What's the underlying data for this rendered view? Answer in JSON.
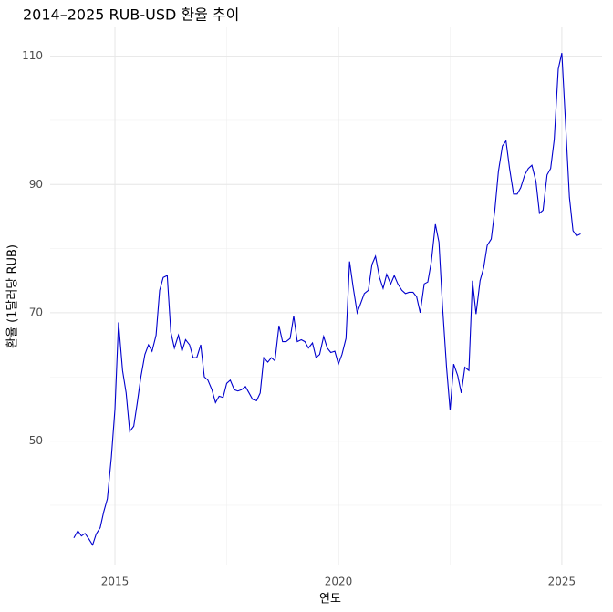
{
  "chart_data": {
    "type": "line",
    "title": "2014–2025 RUB-USD 환율 추이",
    "x_label": "연도",
    "y_label": "환율 (1달러당 RUB)",
    "x": [
      2014.08,
      2014.17,
      2014.25,
      2014.33,
      2014.42,
      2014.5,
      2014.58,
      2014.67,
      2014.75,
      2014.83,
      2014.92,
      2015,
      2015.08,
      2015.17,
      2015.25,
      2015.33,
      2015.42,
      2015.5,
      2015.58,
      2015.67,
      2015.75,
      2015.83,
      2015.92,
      2016,
      2016.08,
      2016.17,
      2016.25,
      2016.33,
      2016.42,
      2016.5,
      2016.58,
      2016.67,
      2016.75,
      2016.83,
      2016.92,
      2017,
      2017.08,
      2017.17,
      2017.25,
      2017.33,
      2017.42,
      2017.5,
      2017.58,
      2017.67,
      2017.75,
      2017.83,
      2017.92,
      2018,
      2018.08,
      2018.17,
      2018.25,
      2018.33,
      2018.42,
      2018.5,
      2018.58,
      2018.67,
      2018.75,
      2018.83,
      2018.92,
      2019,
      2019.08,
      2019.17,
      2019.25,
      2019.33,
      2019.42,
      2019.5,
      2019.58,
      2019.67,
      2019.75,
      2019.83,
      2019.92,
      2020,
      2020.08,
      2020.17,
      2020.25,
      2020.33,
      2020.42,
      2020.5,
      2020.58,
      2020.67,
      2020.75,
      2020.83,
      2020.92,
      2021,
      2021.08,
      2021.17,
      2021.25,
      2021.33,
      2021.42,
      2021.5,
      2021.58,
      2021.67,
      2021.75,
      2021.83,
      2021.92,
      2022,
      2022.08,
      2022.17,
      2022.25,
      2022.33,
      2022.42,
      2022.5,
      2022.58,
      2022.67,
      2022.75,
      2022.83,
      2022.92,
      2023,
      2023.08,
      2023.17,
      2023.25,
      2023.33,
      2023.42,
      2023.5,
      2023.58,
      2023.67,
      2023.75,
      2023.83,
      2023.92,
      2024,
      2024.08,
      2024.17,
      2024.25,
      2024.33,
      2024.42,
      2024.5,
      2024.58,
      2024.67,
      2024.75,
      2024.83,
      2024.92,
      2025,
      2025.08,
      2025.17,
      2025.25,
      2025.33,
      2025.42
    ],
    "series": [
      {
        "name": "RUB-USD",
        "color": "#0000cd",
        "values": [
          34.9,
          36.0,
          35.2,
          35.6,
          34.7,
          33.8,
          35.5,
          36.5,
          39.0,
          41.0,
          47.5,
          55.0,
          68.5,
          61.0,
          57.5,
          51.5,
          52.3,
          56.0,
          60.0,
          63.5,
          65.0,
          64.0,
          66.5,
          73.5,
          75.5,
          75.8,
          67.0,
          64.5,
          66.5,
          64.0,
          65.8,
          65.0,
          63.0,
          63.0,
          65.0,
          60.0,
          59.5,
          58.0,
          56.0,
          57.0,
          56.8,
          59.0,
          59.5,
          58.0,
          57.8,
          58.0,
          58.5,
          57.5,
          56.5,
          56.3,
          57.5,
          63.0,
          62.3,
          63.0,
          62.5,
          68.0,
          65.5,
          65.5,
          66.0,
          69.5,
          65.5,
          65.8,
          65.5,
          64.5,
          65.3,
          63.0,
          63.5,
          66.3,
          64.5,
          63.8,
          64.0,
          62.0,
          63.5,
          66.0,
          78.0,
          74.0,
          70.0,
          71.5,
          73.0,
          73.5,
          77.5,
          78.8,
          75.5,
          73.8,
          76.0,
          74.5,
          75.8,
          74.5,
          73.5,
          73.0,
          73.2,
          73.2,
          72.5,
          70.0,
          74.5,
          74.8,
          78.0,
          83.8,
          81.0,
          71.0,
          61.5,
          54.8,
          62.0,
          60.2,
          57.5,
          61.5,
          61.0,
          75.0,
          69.8,
          75.0,
          77.0,
          80.5,
          81.5,
          86.0,
          92.0,
          96.0,
          96.8,
          92.5,
          88.5,
          88.5,
          89.5,
          91.5,
          92.5,
          93.0,
          90.5,
          85.5,
          86.0,
          91.5,
          92.5,
          97.0,
          108.0,
          110.5,
          100.0,
          88.0,
          82.8,
          82.0,
          82.3
        ]
      }
    ],
    "xlim": [
      2013.55,
      2025.9
    ],
    "xticks": [
      2015,
      2020,
      2025
    ],
    "ylim": [
      30.6,
      114.5
    ],
    "yticks": [
      50,
      70,
      90,
      110
    ],
    "x_minor_grid": [
      2017.5,
      2022.5
    ],
    "y_minor_grid": [
      40,
      60,
      80,
      100
    ],
    "grid": true
  }
}
